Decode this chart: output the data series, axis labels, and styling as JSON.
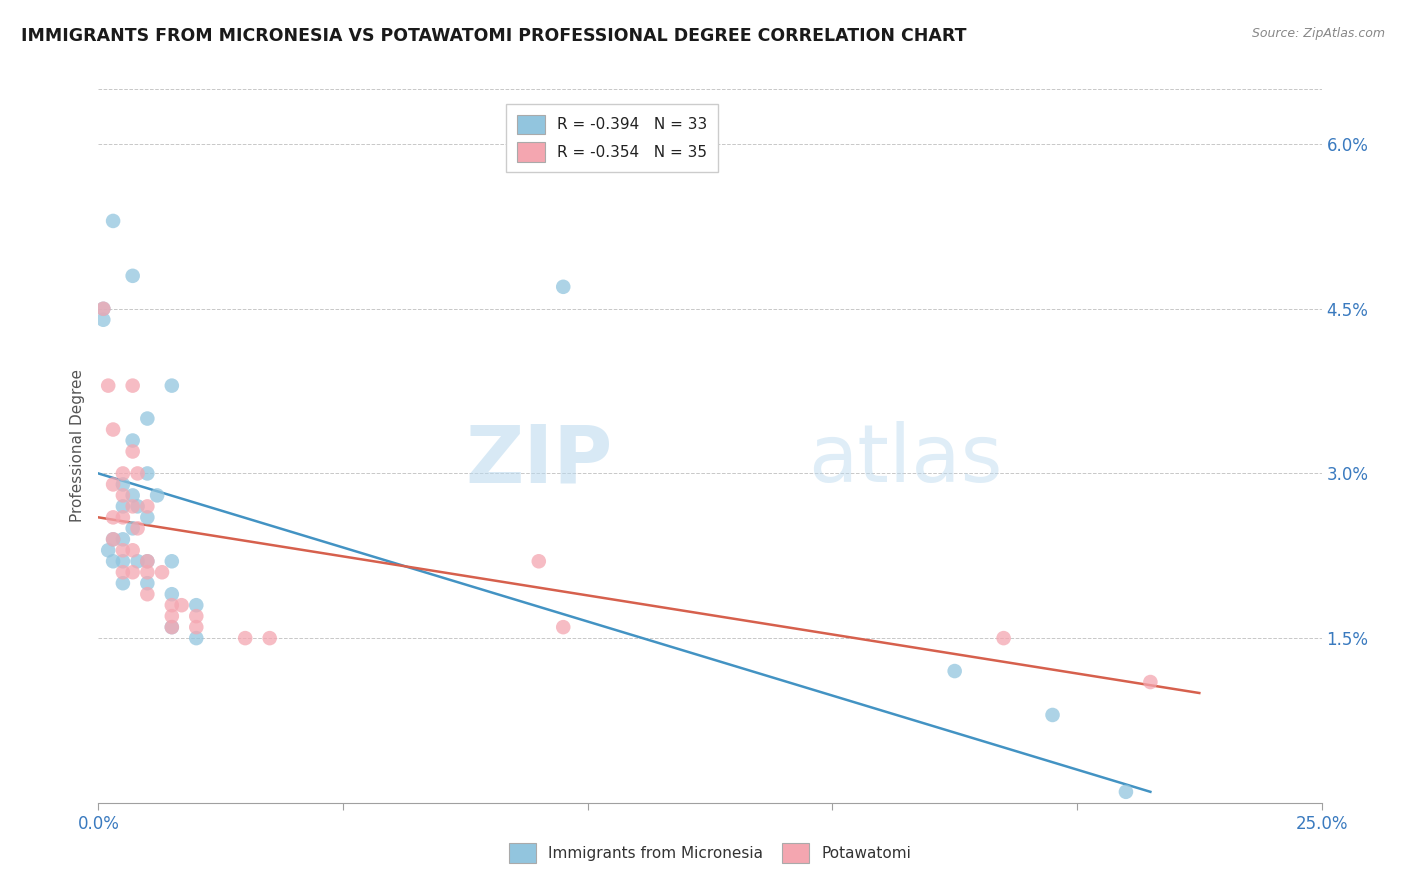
{
  "title": "IMMIGRANTS FROM MICRONESIA VS POTAWATOMI PROFESSIONAL DEGREE CORRELATION CHART",
  "source_text": "Source: ZipAtlas.com",
  "ylabel": "Professional Degree",
  "xlim": [
    0.0,
    0.25
  ],
  "ylim": [
    0.0,
    0.065
  ],
  "xticks": [
    0.0,
    0.05,
    0.1,
    0.15,
    0.2,
    0.25
  ],
  "xticklabels": [
    "0.0%",
    "",
    "",
    "",
    "",
    "25.0%"
  ],
  "yticks": [
    0.0,
    0.015,
    0.03,
    0.045,
    0.06
  ],
  "yticklabels": [
    "",
    "1.5%",
    "3.0%",
    "4.5%",
    "6.0%"
  ],
  "legend1_label": "R = -0.394   N = 33",
  "legend2_label": "R = -0.354   N = 35",
  "legend_bottom_label1": "Immigrants from Micronesia",
  "legend_bottom_label2": "Potawatomi",
  "blue_color": "#92c5de",
  "pink_color": "#f4a6b0",
  "blue_line_color": "#4393c3",
  "pink_line_color": "#d6604d",
  "watermark_zip": "ZIP",
  "watermark_atlas": "atlas",
  "blue_points": [
    [
      0.003,
      0.053
    ],
    [
      0.007,
      0.048
    ],
    [
      0.001,
      0.045
    ],
    [
      0.001,
      0.044
    ],
    [
      0.095,
      0.047
    ],
    [
      0.015,
      0.038
    ],
    [
      0.01,
      0.035
    ],
    [
      0.007,
      0.033
    ],
    [
      0.01,
      0.03
    ],
    [
      0.005,
      0.029
    ],
    [
      0.007,
      0.028
    ],
    [
      0.012,
      0.028
    ],
    [
      0.005,
      0.027
    ],
    [
      0.008,
      0.027
    ],
    [
      0.01,
      0.026
    ],
    [
      0.007,
      0.025
    ],
    [
      0.003,
      0.024
    ],
    [
      0.005,
      0.024
    ],
    [
      0.002,
      0.023
    ],
    [
      0.003,
      0.022
    ],
    [
      0.005,
      0.022
    ],
    [
      0.008,
      0.022
    ],
    [
      0.01,
      0.022
    ],
    [
      0.015,
      0.022
    ],
    [
      0.005,
      0.02
    ],
    [
      0.01,
      0.02
    ],
    [
      0.015,
      0.019
    ],
    [
      0.02,
      0.018
    ],
    [
      0.015,
      0.016
    ],
    [
      0.02,
      0.015
    ],
    [
      0.175,
      0.012
    ],
    [
      0.195,
      0.008
    ],
    [
      0.21,
      0.001
    ]
  ],
  "pink_points": [
    [
      0.001,
      0.045
    ],
    [
      0.002,
      0.038
    ],
    [
      0.007,
      0.038
    ],
    [
      0.003,
      0.034
    ],
    [
      0.007,
      0.032
    ],
    [
      0.005,
      0.03
    ],
    [
      0.008,
      0.03
    ],
    [
      0.003,
      0.029
    ],
    [
      0.005,
      0.028
    ],
    [
      0.007,
      0.027
    ],
    [
      0.01,
      0.027
    ],
    [
      0.003,
      0.026
    ],
    [
      0.005,
      0.026
    ],
    [
      0.008,
      0.025
    ],
    [
      0.003,
      0.024
    ],
    [
      0.005,
      0.023
    ],
    [
      0.007,
      0.023
    ],
    [
      0.01,
      0.022
    ],
    [
      0.005,
      0.021
    ],
    [
      0.007,
      0.021
    ],
    [
      0.01,
      0.021
    ],
    [
      0.013,
      0.021
    ],
    [
      0.01,
      0.019
    ],
    [
      0.015,
      0.018
    ],
    [
      0.017,
      0.018
    ],
    [
      0.015,
      0.017
    ],
    [
      0.02,
      0.017
    ],
    [
      0.015,
      0.016
    ],
    [
      0.02,
      0.016
    ],
    [
      0.03,
      0.015
    ],
    [
      0.035,
      0.015
    ],
    [
      0.09,
      0.022
    ],
    [
      0.095,
      0.016
    ],
    [
      0.185,
      0.015
    ],
    [
      0.215,
      0.011
    ]
  ],
  "blue_trendline_x": [
    0.0,
    0.215
  ],
  "blue_trendline_y": [
    0.03,
    0.001
  ],
  "pink_trendline_x": [
    0.0,
    0.225
  ],
  "pink_trendline_y": [
    0.026,
    0.01
  ]
}
